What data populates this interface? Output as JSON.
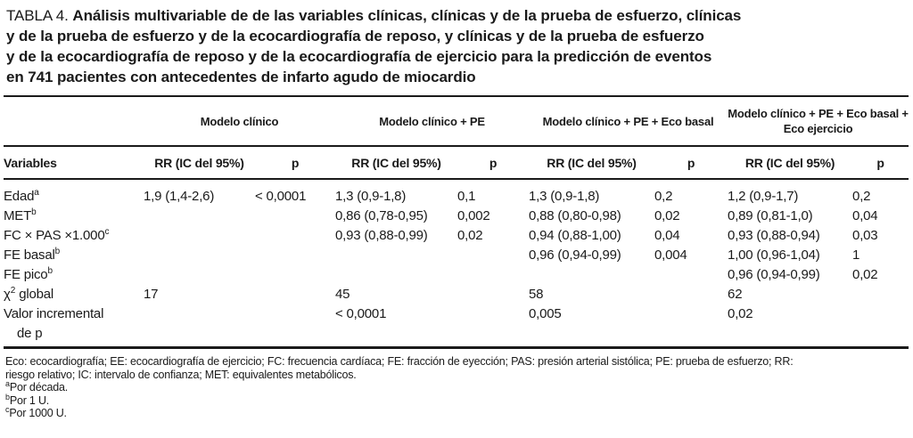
{
  "title": {
    "prefix": "TABLA 4.",
    "lines": [
      "Análisis multivariable de de las variables clínicas, clínicas y de la prueba de esfuerzo, clínicas",
      "y de la prueba de esfuerzo y de la ecocardiografía de reposo, y clínicas y de la prueba de esfuerzo",
      "y de la ecocardiografía de reposo y de la ecocardiografía de ejercicio para la predicción de eventos",
      "en 741 pacientes con antecedentes de infarto agudo de miocardio"
    ]
  },
  "table": {
    "group_headers": [
      {
        "line1": "Modelo clínico",
        "line2": ""
      },
      {
        "line1": "Modelo clínico + PE",
        "line2": ""
      },
      {
        "line1": "Modelo clínico + PE + Eco basal",
        "line2": ""
      },
      {
        "line1": "Modelo clínico + PE + Eco basal +",
        "line2": "Eco ejercicio"
      }
    ],
    "col_headers": {
      "variables": "Variables",
      "rr": "RR (IC del 95%)",
      "p": "p"
    },
    "rows": [
      {
        "pre": "Edad",
        "sup": "a",
        "post": "",
        "line2": "",
        "cells": [
          "1,9 (1,4-2,6)",
          "< 0,0001",
          "1,3 (0,9-1,8)",
          "0,1",
          "1,3 (0,9-1,8)",
          "0,2",
          "1,2 (0,9-1,7)",
          "0,2"
        ]
      },
      {
        "pre": "MET",
        "sup": "b",
        "post": "",
        "line2": "",
        "cells": [
          "",
          "",
          "0,86 (0,78-0,95)",
          "0,002",
          "0,88 (0,80-0,98)",
          "0,02",
          "0,89 (0,81-1,0)",
          "0,04"
        ]
      },
      {
        "pre": "FC × PAS ×1.000",
        "sup": "c",
        "post": "",
        "line2": "",
        "cells": [
          "",
          "",
          "0,93 (0,88-0,99)",
          "0,02",
          "0,94 (0,88-1,00)",
          "0,04",
          "0,93 (0,88-0,94)",
          "0,03"
        ]
      },
      {
        "pre": "FE basal",
        "sup": "b",
        "post": "",
        "line2": "",
        "cells": [
          "",
          "",
          "",
          "",
          "0,96 (0,94-0,99)",
          "0,004",
          "1,00 (0,96-1,04)",
          "1"
        ]
      },
      {
        "pre": "FE pico",
        "sup": "b",
        "post": "",
        "line2": "",
        "cells": [
          "",
          "",
          "",
          "",
          "",
          "",
          "0,96 (0,94-0,99)",
          "0,02"
        ]
      },
      {
        "pre": "χ",
        "sup": "2",
        "post": " global",
        "line2": "",
        "cells": [
          "17",
          "",
          "45",
          "",
          "58",
          "",
          "62",
          ""
        ]
      },
      {
        "pre": "Valor incremental",
        "sup": "",
        "post": "",
        "line2": "de p",
        "cells": [
          "",
          "",
          "< 0,0001",
          "",
          "0,005",
          "",
          "0,02",
          ""
        ]
      }
    ]
  },
  "footnotes": {
    "abbrev_lines": [
      "Eco: ecocardiografía; EE: ecocardiografía de ejercicio; FC: frecuencia cardíaca; FE: fracción de eyección; PAS: presión arterial sistólica; PE: prueba de esfuerzo; RR:",
      "riesgo relativo; IC: intervalo de confianza; MET: equivalentes metabólicos."
    ],
    "notes": [
      {
        "sup": "a",
        "text": "Por década."
      },
      {
        "sup": "b",
        "text": "Por 1 U."
      },
      {
        "sup": "c",
        "text": "Por 1000 U."
      }
    ]
  },
  "colors": {
    "text": "#1a1a1a",
    "rule": "#1a1a1a",
    "background": "#ffffff"
  }
}
